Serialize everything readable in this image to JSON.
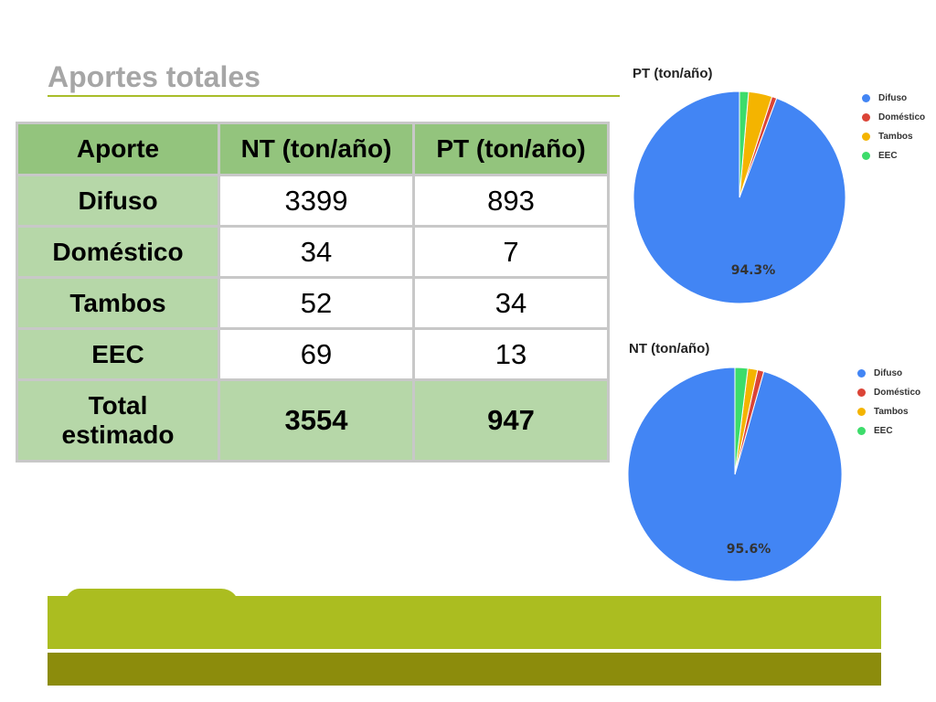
{
  "slide": {
    "title": "Aportes totales"
  },
  "table": {
    "headers": [
      "Aporte",
      "NT (ton/año)",
      "PT (ton/año)"
    ],
    "rows": [
      {
        "label": "Difuso",
        "nt": "3399",
        "pt": "893"
      },
      {
        "label": "Doméstico",
        "nt": "34",
        "pt": "7"
      },
      {
        "label": "Tambos",
        "nt": "52",
        "pt": "34"
      },
      {
        "label": "EEC",
        "nt": "69",
        "pt": "13"
      }
    ],
    "total": {
      "label_line1": "Total",
      "label_line2": "estimado",
      "nt": "3554",
      "pt": "947"
    }
  },
  "colors": {
    "header_green": "#93c47d",
    "label_green": "#b6d7a8",
    "band_green": "#abbd20",
    "band_olive": "#8c8c0c",
    "title_gray": "#a6a6a6"
  },
  "chart_data": [
    {
      "type": "pie",
      "title": "PT (ton/año)",
      "categories": [
        "Difuso",
        "Doméstico",
        "Tambos",
        "EEC"
      ],
      "values": [
        893,
        7,
        34,
        13
      ],
      "colors": [
        "#4285f4",
        "#db4437",
        "#f4b400",
        "#3ddc6b"
      ],
      "data_labels": [
        "94.3%"
      ],
      "legend_position": "right"
    },
    {
      "type": "pie",
      "title": "NT (ton/año)",
      "categories": [
        "Difuso",
        "Doméstico",
        "Tambos",
        "EEC"
      ],
      "values": [
        3399,
        34,
        52,
        69
      ],
      "colors": [
        "#4285f4",
        "#db4437",
        "#f4b400",
        "#3ddc6b"
      ],
      "data_labels": [
        "95.6%"
      ],
      "legend_position": "right"
    }
  ]
}
